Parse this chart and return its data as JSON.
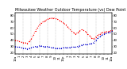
{
  "title": "Milwaukee Weather Outdoor Temperature (vs) Dew Point (Last 24 Hours)",
  "bg_color": "#ffffff",
  "plot_bg": "#ffffff",
  "grid_color": "#888888",
  "temp_color": "#ff0000",
  "dew_color": "#0000cc",
  "temp_x": [
    0,
    0.5,
    1,
    1.5,
    2,
    2.5,
    3,
    3.5,
    4,
    4.5,
    5,
    5.5,
    6,
    6.5,
    7,
    7.5,
    8,
    8.5,
    9,
    9.5,
    10,
    10.5,
    11,
    11.5,
    12,
    12.5,
    13,
    13.5,
    14,
    14.5,
    15,
    15.5,
    16,
    16.5,
    17,
    17.5,
    18,
    18.5,
    19,
    19.5,
    20,
    20.5,
    21,
    21.5,
    22,
    22.5,
    23,
    23.5,
    24
  ],
  "temp_y": [
    40,
    39,
    38,
    37,
    36,
    36,
    35,
    38,
    42,
    48,
    55,
    60,
    65,
    68,
    70,
    72,
    74,
    75,
    76,
    76,
    75,
    74,
    72,
    70,
    68,
    65,
    62,
    58,
    55,
    52,
    50,
    52,
    55,
    57,
    56,
    54,
    50,
    47,
    44,
    42,
    45,
    48,
    50,
    52,
    53,
    54,
    54,
    55,
    56
  ],
  "dew_x": [
    0,
    0.5,
    1,
    1.5,
    2,
    2.5,
    3,
    3.5,
    4,
    4.5,
    5,
    5.5,
    6,
    6.5,
    7,
    7.5,
    8,
    8.5,
    9,
    9.5,
    10,
    10.5,
    11,
    11.5,
    12,
    12.5,
    13,
    13.5,
    14,
    14.5,
    15,
    15.5,
    16,
    16.5,
    17,
    17.5,
    18,
    18.5,
    19,
    19.5,
    20,
    20.5,
    21,
    21.5,
    22,
    22.5,
    23,
    23.5,
    24
  ],
  "dew_y": [
    30,
    29,
    29,
    28,
    27,
    27,
    26,
    27,
    28,
    29,
    30,
    30,
    31,
    31,
    30,
    30,
    30,
    29,
    28,
    28,
    27,
    27,
    27,
    27,
    28,
    28,
    28,
    28,
    29,
    29,
    29,
    30,
    31,
    32,
    33,
    33,
    33,
    34,
    35,
    36,
    40,
    43,
    46,
    48,
    50,
    51,
    52,
    53,
    55
  ],
  "ylim": [
    18,
    85
  ],
  "xlim": [
    0,
    24
  ],
  "xtick_positions": [
    0,
    1,
    2,
    3,
    4,
    5,
    6,
    7,
    8,
    9,
    10,
    11,
    12,
    13,
    14,
    15,
    16,
    17,
    18,
    19,
    20,
    21,
    22,
    23,
    24
  ],
  "xtick_labels": [
    "12a",
    "1",
    "2",
    "3",
    "4",
    "5",
    "6",
    "7",
    "8",
    "9",
    "10",
    "11",
    "12p",
    "1",
    "2",
    "3",
    "4",
    "5",
    "6",
    "7",
    "8",
    "9",
    "10",
    "11",
    "12a"
  ],
  "ytick_positions": [
    20,
    30,
    40,
    50,
    60,
    70,
    80
  ],
  "ytick_labels": [
    "20",
    "30",
    "40",
    "50",
    "60",
    "70",
    "80"
  ],
  "vgrid_positions": [
    2,
    4,
    6,
    8,
    10,
    12,
    14,
    16,
    18,
    20,
    22
  ],
  "title_fontsize": 3.5,
  "tick_fontsize": 2.8,
  "line_width": 0.7,
  "marker_size": 0.9,
  "fig_width": 1.6,
  "fig_height": 0.87,
  "dpi": 100
}
